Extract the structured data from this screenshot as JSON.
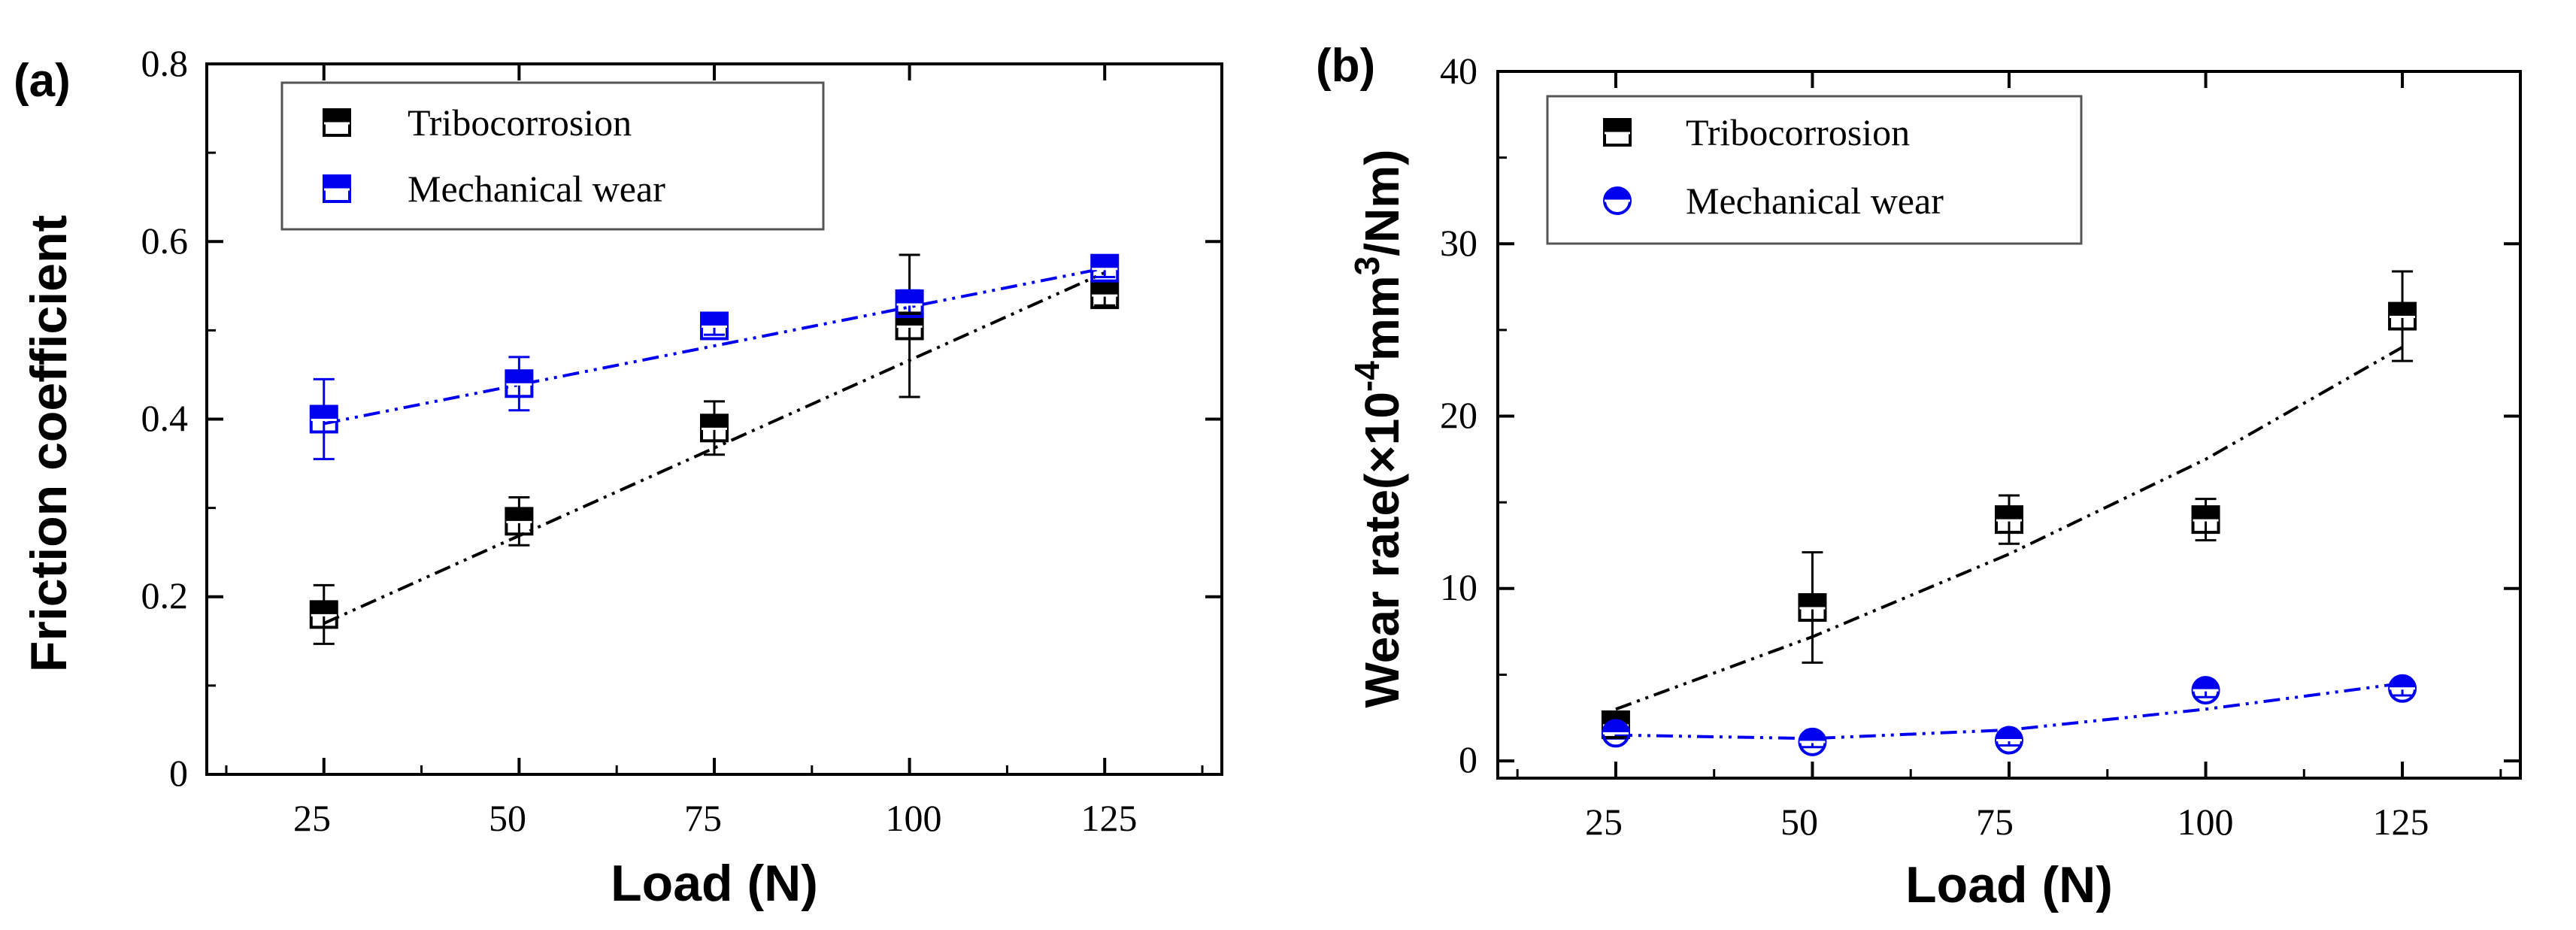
{
  "chart_data": [
    {
      "type": "scatter",
      "panel_label": "(a)",
      "xlabel": "Load (N)",
      "ylabel": "Friction coefficient",
      "x_ticks": [
        "25",
        "50",
        "75",
        "100",
        "125"
      ],
      "y_ticks": [
        "0",
        "0.2",
        "0.4",
        "0.6",
        "0.8"
      ],
      "xlim": [
        10,
        140
      ],
      "ylim": [
        0,
        0.8
      ],
      "legend": {
        "position": "top-left"
      },
      "series": [
        {
          "name": "Tribocorrosion",
          "color": "#000000",
          "marker": "square-half",
          "x": [
            25,
            50,
            75,
            100,
            125
          ],
          "y": [
            0.18,
            0.285,
            0.39,
            0.505,
            0.54
          ],
          "err": [
            0.033,
            0.027,
            0.03,
            0.08,
            0.012
          ],
          "fit": {
            "x": [
              25,
              125
            ],
            "y": [
              0.17,
              0.565
            ]
          }
        },
        {
          "name": "Mechanical wear",
          "color": "#0000ee",
          "marker": "square-half",
          "x": [
            25,
            50,
            75,
            100,
            125
          ],
          "y": [
            0.4,
            0.44,
            0.505,
            0.53,
            0.57
          ],
          "err": [
            0.045,
            0.03,
            0.01,
            0.015,
            0.01
          ],
          "fit": {
            "x": [
              25,
              125
            ],
            "y": [
              0.395,
              0.57
            ]
          }
        }
      ]
    },
    {
      "type": "scatter",
      "panel_label": "(b)",
      "xlabel": "Load (N)",
      "ylabel_prefix": "Wear rate(×10",
      "ylabel_sup1": "-4",
      "ylabel_mid": "mm",
      "ylabel_sup2": "3",
      "ylabel_suffix": "/Nm)",
      "x_ticks": [
        "25",
        "50",
        "75",
        "100",
        "125"
      ],
      "y_ticks": [
        "0",
        "10",
        "20",
        "30",
        "40"
      ],
      "xlim": [
        10,
        140
      ],
      "ylim": [
        -1,
        40
      ],
      "legend": {
        "position": "top-left"
      },
      "series": [
        {
          "name": "Tribocorrosion",
          "color": "#000000",
          "marker": "square-half",
          "x": [
            25,
            50,
            75,
            100,
            125
          ],
          "y": [
            2.1,
            8.9,
            14.0,
            14.0,
            25.8
          ],
          "err": [
            0.4,
            3.2,
            1.4,
            1.2,
            2.6
          ],
          "fit": {
            "x": [
              25,
              50,
              75,
              100,
              125
            ],
            "y": [
              3.0,
              7.2,
              12.0,
              17.5,
              24.0
            ]
          }
        },
        {
          "name": "Mechanical wear",
          "color": "#0000ee",
          "marker": "circle-half",
          "x": [
            25,
            50,
            75,
            100,
            125
          ],
          "y": [
            1.6,
            1.1,
            1.2,
            4.1,
            4.2
          ],
          "err": [
            0.3,
            0.3,
            0.3,
            0.4,
            0.4
          ],
          "fit": {
            "x": [
              25,
              50,
              75,
              100,
              125
            ],
            "y": [
              1.5,
              1.3,
              1.8,
              3.0,
              4.5
            ]
          }
        }
      ]
    }
  ]
}
